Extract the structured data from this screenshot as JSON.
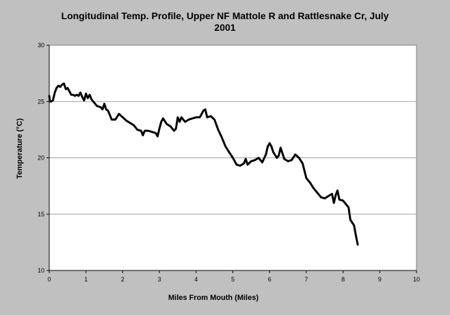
{
  "chart_data": {
    "type": "line",
    "title_line1": "Longitudinal Temp. Profile, Upper NF Mattole R and Rattlesnake Cr, July",
    "title_line2": "2001",
    "xlabel": "Miles From Mouth (Miles)",
    "ylabel": "Temperature (°C)",
    "xlim": [
      0,
      10
    ],
    "ylim": [
      10,
      30
    ],
    "x_ticks": [
      0,
      1,
      2,
      3,
      4,
      5,
      6,
      7,
      8,
      9,
      10
    ],
    "y_ticks": [
      10,
      15,
      20,
      25,
      30
    ],
    "grid": "horizontal",
    "series": [
      {
        "color": "#000000",
        "x": [
          0.0,
          0.02,
          0.05,
          0.1,
          0.15,
          0.2,
          0.25,
          0.3,
          0.35,
          0.4,
          0.45,
          0.5,
          0.55,
          0.6,
          0.65,
          0.7,
          0.75,
          0.8,
          0.85,
          0.9,
          0.95,
          1.0,
          1.05,
          1.1,
          1.15,
          1.2,
          1.3,
          1.4,
          1.45,
          1.5,
          1.55,
          1.6,
          1.7,
          1.8,
          1.9,
          2.0,
          2.1,
          2.2,
          2.3,
          2.4,
          2.5,
          2.55,
          2.6,
          2.7,
          2.8,
          2.9,
          2.95,
          3.0,
          3.05,
          3.1,
          3.2,
          3.3,
          3.4,
          3.45,
          3.5,
          3.55,
          3.6,
          3.7,
          3.8,
          3.9,
          4.0,
          4.1,
          4.2,
          4.25,
          4.3,
          4.4,
          4.5,
          4.6,
          4.7,
          4.8,
          4.9,
          5.0,
          5.1,
          5.2,
          5.3,
          5.35,
          5.4,
          5.5,
          5.6,
          5.7,
          5.8,
          5.9,
          5.95,
          6.0,
          6.05,
          6.1,
          6.2,
          6.25,
          6.3,
          6.4,
          6.5,
          6.6,
          6.7,
          6.8,
          6.9,
          7.0,
          7.05,
          7.1,
          7.2,
          7.3,
          7.4,
          7.5,
          7.6,
          7.7,
          7.75,
          7.8,
          7.85,
          7.9,
          8.0,
          8.1,
          8.15,
          8.2,
          8.3,
          8.35,
          8.4
        ],
        "y": [
          25.5,
          25.0,
          25.0,
          25.1,
          25.8,
          26.2,
          26.4,
          26.3,
          26.5,
          26.6,
          26.1,
          26.2,
          25.9,
          25.6,
          25.6,
          25.5,
          25.6,
          25.5,
          25.8,
          25.4,
          25.1,
          25.7,
          25.3,
          25.6,
          25.2,
          25.0,
          24.6,
          24.5,
          24.3,
          24.8,
          24.3,
          24.2,
          23.4,
          23.4,
          23.9,
          23.6,
          23.3,
          23.1,
          22.9,
          22.5,
          22.4,
          22.0,
          22.4,
          22.4,
          22.3,
          22.2,
          21.9,
          22.6,
          23.2,
          23.5,
          23.0,
          22.8,
          22.4,
          22.6,
          23.6,
          23.2,
          23.6,
          23.2,
          23.4,
          23.5,
          23.6,
          23.6,
          24.2,
          24.3,
          23.6,
          23.7,
          23.4,
          22.5,
          21.8,
          21.0,
          20.5,
          20.0,
          19.4,
          19.3,
          19.5,
          19.9,
          19.4,
          19.7,
          19.8,
          20.0,
          19.6,
          20.3,
          21.0,
          21.3,
          21.0,
          20.5,
          20.0,
          20.2,
          20.9,
          19.9,
          19.7,
          19.8,
          20.3,
          20.0,
          19.5,
          18.2,
          18.0,
          17.8,
          17.3,
          16.9,
          16.5,
          16.4,
          16.6,
          16.8,
          16.0,
          16.7,
          17.1,
          16.3,
          16.2,
          15.8,
          15.6,
          14.5,
          14.0,
          13.1,
          12.3
        ]
      }
    ]
  }
}
